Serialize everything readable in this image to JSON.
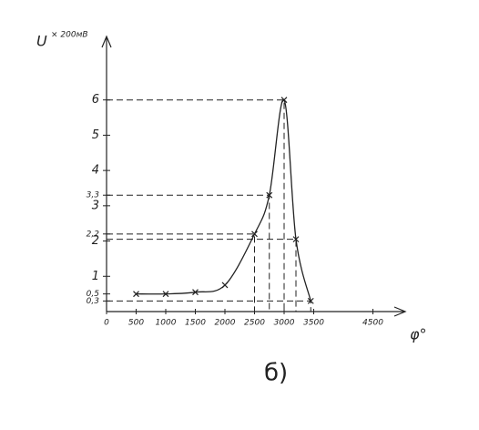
{
  "chart_data": {
    "type": "line",
    "y_label": "U",
    "y_unit": "× 200мВ",
    "x_label": "φ°",
    "caption": "б)",
    "x": [
      500,
      1000,
      1500,
      2000,
      2500,
      2750,
      3000,
      3200,
      3450
    ],
    "series": [
      {
        "color": "#222222",
        "values": [
          0.5,
          0.5,
          0.55,
          0.75,
          2.2,
          3.3,
          6,
          2.05,
          0.3
        ]
      }
    ],
    "xlim": [
      0,
      5000
    ],
    "ylim": [
      0,
      7.8
    ],
    "xticks": [
      0,
      500,
      1000,
      1500,
      2000,
      2500,
      3000,
      3500,
      4500
    ],
    "yticks": [
      {
        "value": 0.3,
        "label": "0,3"
      },
      {
        "value": 0.5,
        "label": "0,5"
      },
      1,
      2,
      {
        "value": 2.2,
        "label": "2,2"
      },
      3,
      {
        "value": 3.3,
        "label": "3,3"
      },
      4,
      5,
      6
    ]
  }
}
